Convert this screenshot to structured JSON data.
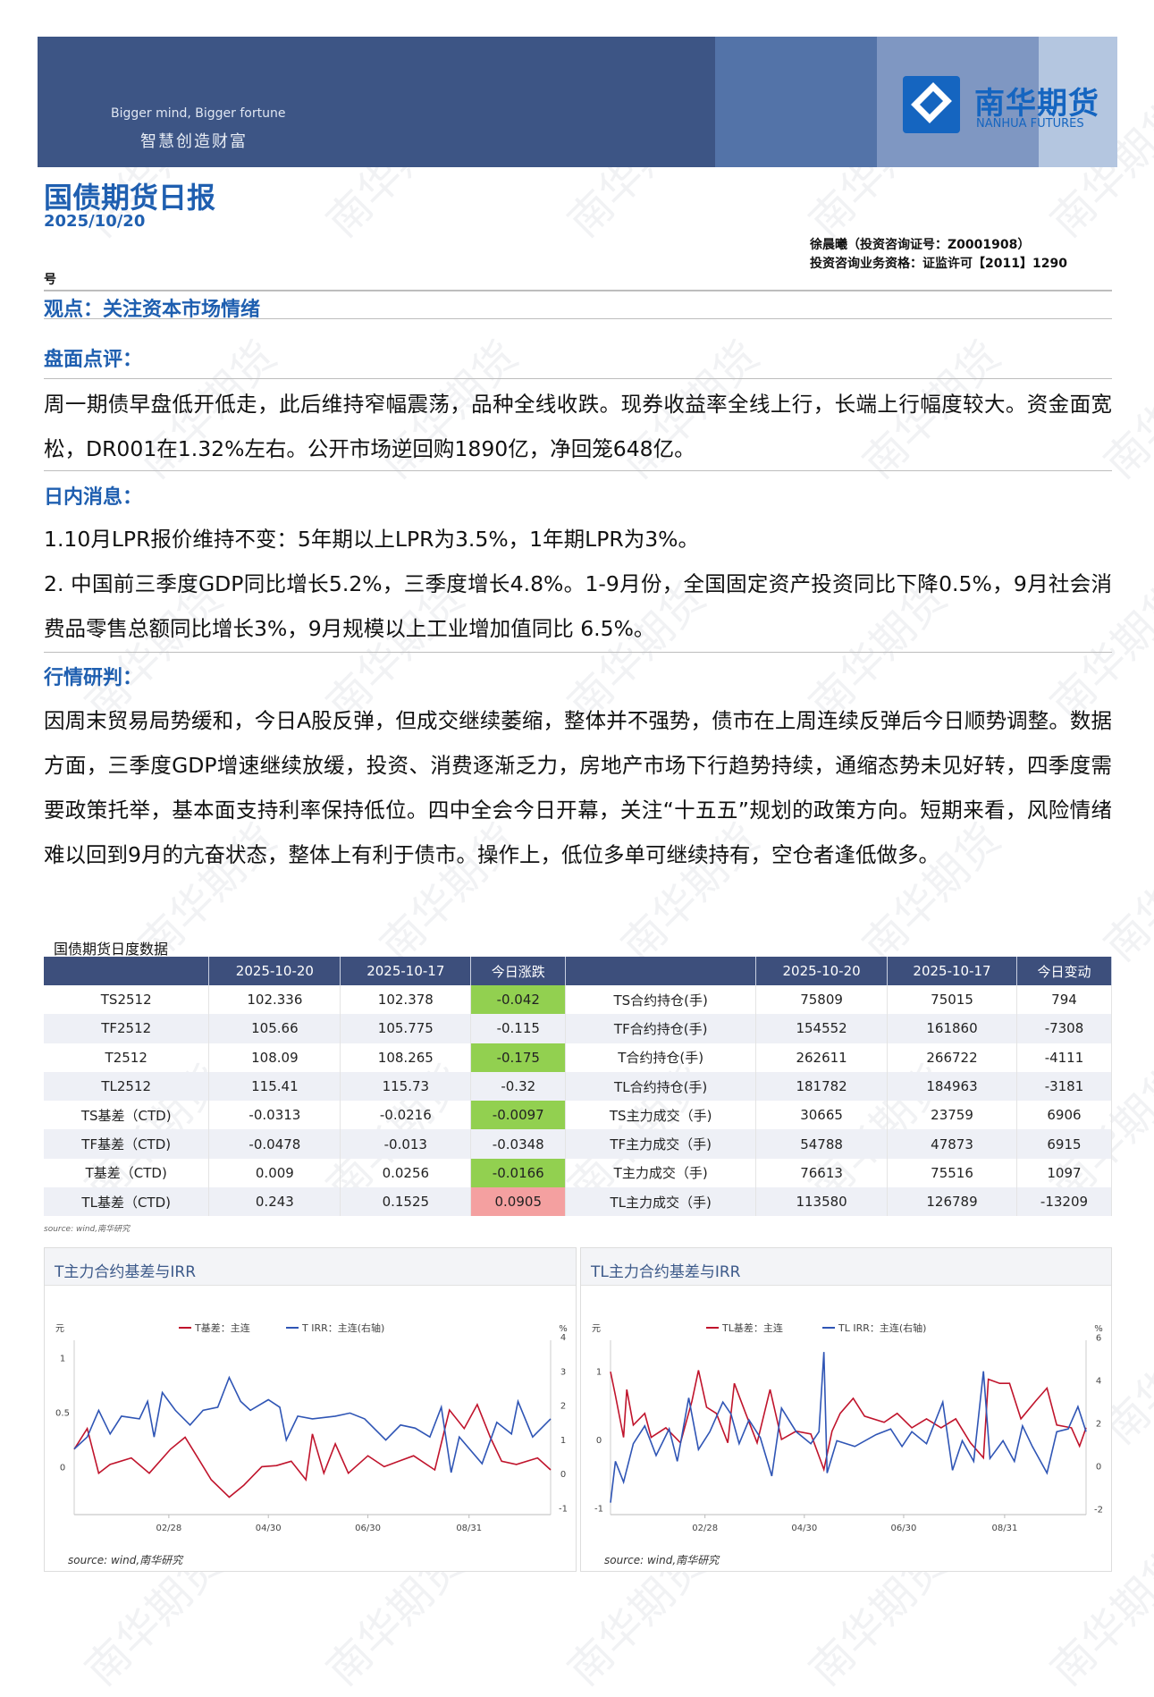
{
  "banner": {
    "slogan_en": "Bigger mind, Bigger fortune",
    "slogan_cn": "智慧创造财富",
    "logo_cn": "南华期货",
    "logo_en": "NANHUA FUTURES"
  },
  "watermark": "南华期货",
  "header": {
    "title": "国债期货日报",
    "date": "2025/10/20",
    "author_line1": "徐晨曦（投资咨询证号：Z0001908）",
    "author_line2": "投资咨询业务资格：证监许可【2011】1290",
    "author_line3": "号"
  },
  "viewpoint": "观点：关注资本市场情绪",
  "sections": [
    {
      "title": "盘面点评：",
      "paragraphs": [
        "周一期债早盘低开低走，此后维持窄幅震荡，品种全线收跌。现券收益率全线上行，长端上行幅度较大。资金面宽松，DR001在1.32%左右。公开市场逆回购1890亿，净回笼648亿。"
      ]
    },
    {
      "title": "日内消息：",
      "paragraphs": [
        "1.10月LPR报价维持不变：5年期以上LPR为3.5%，1年期LPR为3%。",
        "2. 中国前三季度GDP同比增长5.2%，三季度增长4.8%。1-9月份，全国固定资产投资同比下降0.5%，9月社会消费品零售总额同比增长3%，9月规模以上工业增加值同比 6.5%。"
      ]
    },
    {
      "title": "行情研判：",
      "paragraphs": [
        "因周末贸易局势缓和，今日A股反弹，但成交继续萎缩，整体并不强势，债市在上周连续反弹后今日顺势调整。数据方面，三季度GDP增速继续放缓，投资、消费逐渐乏力，房地产市场下行趋势持续，通缩态势未见好转，四季度需要政策托举，基本面支持利率保持低位。四中全会今日开幕，关注“十五五”规划的政策方向。短期来看，风险情绪难以回到9月的亢奋状态，整体上有利于债市。操作上，低位多单可继续持有，空仓者逢低做多。"
      ]
    }
  ],
  "table": {
    "caption": "国债期货日度数据",
    "headers": [
      "",
      "2025-10-20",
      "2025-10-17",
      "今日涨跌",
      "",
      "2025-10-20",
      "2025-10-17",
      "今日变动"
    ],
    "rows": [
      [
        "TS2512",
        "102.336",
        "102.378",
        "-0.042",
        "TS合约持仓(手)",
        "75809",
        "75015",
        "794"
      ],
      [
        "TF2512",
        "105.66",
        "105.775",
        "-0.115",
        "TF合约持仓(手)",
        "154552",
        "161860",
        "-7308"
      ],
      [
        "T2512",
        "108.09",
        "108.265",
        "-0.175",
        "T合约持仓(手)",
        "262611",
        "266722",
        "-4111"
      ],
      [
        "TL2512",
        "115.41",
        "115.73",
        "-0.32",
        "TL合约持仓(手)",
        "181782",
        "184963",
        "-3181"
      ],
      [
        "TS基差（CTD)",
        "-0.0313",
        "-0.0216",
        "-0.0097",
        "TS主力成交（手)",
        "30665",
        "23759",
        "6906"
      ],
      [
        "TF基差（CTD)",
        "-0.0478",
        "-0.013",
        "-0.0348",
        "TF主力成交（手)",
        "54788",
        "47873",
        "6915"
      ],
      [
        "T基差（CTD)",
        "0.009",
        "0.0256",
        "-0.0166",
        "T主力成交（手)",
        "76613",
        "75516",
        "1097"
      ],
      [
        "TL基差（CTD)",
        "0.243",
        "0.1525",
        "0.0905",
        "TL主力成交（手)",
        "113580",
        "126789",
        "-13209"
      ]
    ],
    "source": "source:  wind,南华研究",
    "colors": {
      "down": "#92d050",
      "up": "#f4a0a0",
      "header": "#3d4f7c"
    }
  },
  "chart_data": [
    {
      "type": "line",
      "title": "T主力合约基差与IRR",
      "y_unit_left": "元",
      "y_unit_right": "%",
      "x_range": [
        "2025-01-01",
        "2025-10-20"
      ],
      "x_ticks": [
        "02/28",
        "04/30",
        "06/30",
        "08/31"
      ],
      "x_tick_dates": [
        "2025-02-28",
        "2025-04-30",
        "2025-06-30",
        "2025-08-31"
      ],
      "ylim_left": [
        -0.44,
        1.16
      ],
      "yticks_left": [
        "1",
        "0.5",
        "0"
      ],
      "ylim_right": [
        -1.2,
        3.9
      ],
      "yticks_right": [
        "4",
        "3",
        "2",
        "1",
        "0",
        "-1"
      ],
      "source": "source:  wind,南华研究",
      "series": [
        {
          "name": "T基差：主连",
          "axis": "left",
          "color": "#c0142c",
          "x": [
            "01-01",
            "01-09",
            "01-16",
            "01-23",
            "02-05",
            "02-16",
            "03-01",
            "03-10",
            "03-17",
            "03-26",
            "04-06",
            "04-15",
            "04-26",
            "05-05",
            "05-14",
            "05-23",
            "05-27",
            "06-03",
            "06-10",
            "06-18",
            "06-30",
            "07-10",
            "07-19",
            "07-28",
            "08-10",
            "08-19",
            "08-28",
            "09-05",
            "09-13",
            "09-20",
            "09-29",
            "10-12",
            "10-20"
          ],
          "y": [
            0.16,
            0.35,
            -0.06,
            0.02,
            0.08,
            -0.06,
            0.16,
            0.27,
            0.1,
            -0.12,
            -0.28,
            -0.17,
            0,
            0.01,
            0.05,
            -0.12,
            0.3,
            -0.06,
            0.21,
            -0.06,
            0.1,
            0,
            0.05,
            0.1,
            -0.03,
            0.52,
            0.35,
            0.57,
            0.27,
            0.05,
            0.02,
            0.08,
            -0.03
          ]
        },
        {
          "name": "T IRR：主连(右轴)",
          "axis": "right",
          "color": "#2f55b5",
          "x": [
            "01-01",
            "01-09",
            "01-16",
            "01-23",
            "01-30",
            "02-10",
            "02-15",
            "02-19",
            "02-24",
            "03-04",
            "03-13",
            "03-21",
            "03-30",
            "04-06",
            "04-13",
            "04-19",
            "04-30",
            "05-07",
            "05-11",
            "05-18",
            "05-27",
            "06-10",
            "06-19",
            "06-28",
            "07-11",
            "07-20",
            "07-29",
            "08-07",
            "08-14",
            "08-20",
            "08-25",
            "09-08",
            "09-17",
            "09-26",
            "09-30",
            "10-09",
            "10-20"
          ],
          "y": [
            0.72,
            1.07,
            1.85,
            1.16,
            1.68,
            1.6,
            2.11,
            1.07,
            2.37,
            1.85,
            1.42,
            1.85,
            1.94,
            2.81,
            2.11,
            1.85,
            2.16,
            1.94,
            0.98,
            1.68,
            1.6,
            1.68,
            1.77,
            1.6,
            0.98,
            1.42,
            1.33,
            1.07,
            1.94,
            0.03,
            1.07,
            0.29,
            1.5,
            1.16,
            2.11,
            1.07,
            1.6
          ]
        }
      ]
    },
    {
      "type": "line",
      "title": "TL主力合约基差与IRR",
      "y_unit_left": "元",
      "y_unit_right": "%",
      "x_range": [
        "2025-01-01",
        "2025-10-20"
      ],
      "x_ticks": [
        "02/28",
        "04/30",
        "06/30",
        "08/31"
      ],
      "x_tick_dates": [
        "2025-02-28",
        "2025-04-30",
        "2025-06-30",
        "2025-08-31"
      ],
      "ylim_left": [
        -1.1,
        1.45
      ],
      "yticks_left": [
        "1",
        "0",
        "-1"
      ],
      "ylim_right": [
        -2.28,
        5.86
      ],
      "yticks_right": [
        "6",
        "4",
        "2",
        "0",
        "-2"
      ],
      "source": "source:  wind,南华研究",
      "series": [
        {
          "name": "TL基差：主连",
          "axis": "left",
          "color": "#c0142c",
          "x": [
            "01-01",
            "01-04",
            "01-09",
            "01-11",
            "01-15",
            "01-22",
            "01-26",
            "02-04",
            "02-13",
            "02-20",
            "02-24",
            "03-01",
            "03-07",
            "03-14",
            "03-18",
            "03-25",
            "04-01",
            "04-09",
            "04-16",
            "04-25",
            "05-04",
            "05-12",
            "05-17",
            "05-22",
            "05-30",
            "06-06",
            "06-18",
            "06-26",
            "07-05",
            "07-14",
            "07-23",
            "08-01",
            "08-10",
            "08-18",
            "08-21",
            "08-28",
            "09-03",
            "09-10",
            "09-19",
            "09-26",
            "10-02",
            "10-11",
            "10-16",
            "10-20"
          ],
          "y": [
            0.99,
            0.64,
            0.03,
            0.73,
            0.21,
            0.38,
            0.03,
            0.17,
            -0.05,
            0.56,
            1.01,
            0.47,
            0.38,
            -0.05,
            0.82,
            0.38,
            -0.05,
            0.73,
            0,
            0.12,
            0.08,
            -0.44,
            0.12,
            0.38,
            0.6,
            0.34,
            0.25,
            0.38,
            0.17,
            0.3,
            0.17,
            0.3,
            -0.05,
            -0.27,
            0.88,
            0.82,
            0.82,
            0.3,
            0.56,
            0.75,
            0.21,
            0.17,
            -0.1,
            0.17
          ]
        },
        {
          "name": "TL IRR：主连(右轴)",
          "axis": "right",
          "color": "#2f55b5",
          "x": [
            "01-01",
            "01-04",
            "01-09",
            "01-15",
            "01-22",
            "01-29",
            "02-06",
            "02-11",
            "02-18",
            "02-24",
            "03-03",
            "03-11",
            "03-16",
            "03-21",
            "03-27",
            "04-03",
            "04-10",
            "04-16",
            "04-25",
            "05-04",
            "05-09",
            "05-12",
            "05-14",
            "05-20",
            "05-31",
            "06-13",
            "06-22",
            "06-29",
            "07-05",
            "07-14",
            "07-24",
            "07-30",
            "08-05",
            "08-12",
            "08-18",
            "08-22",
            "08-30",
            "09-06",
            "09-11",
            "09-17",
            "09-26",
            "10-02",
            "10-09",
            "10-15",
            "10-20"
          ],
          "y": [
            -1.72,
            0.21,
            -0.76,
            1.03,
            1.86,
            0.48,
            1.72,
            0.21,
            3.17,
            0.76,
            1.59,
            2.97,
            2.41,
            1.03,
            2.14,
            1.31,
            -0.48,
            2.69,
            1.59,
            1.03,
            1.59,
            5.31,
            -0.34,
            1.17,
            0.9,
            1.45,
            1.72,
            0.9,
            1.59,
            1.03,
            2.97,
            -0.21,
            1.17,
            0.21,
            4.41,
            0.34,
            1.17,
            0.21,
            1.86,
            0.9,
            -0.34,
            1.59,
            1.72,
            2.76,
            1.59
          ]
        }
      ]
    }
  ]
}
